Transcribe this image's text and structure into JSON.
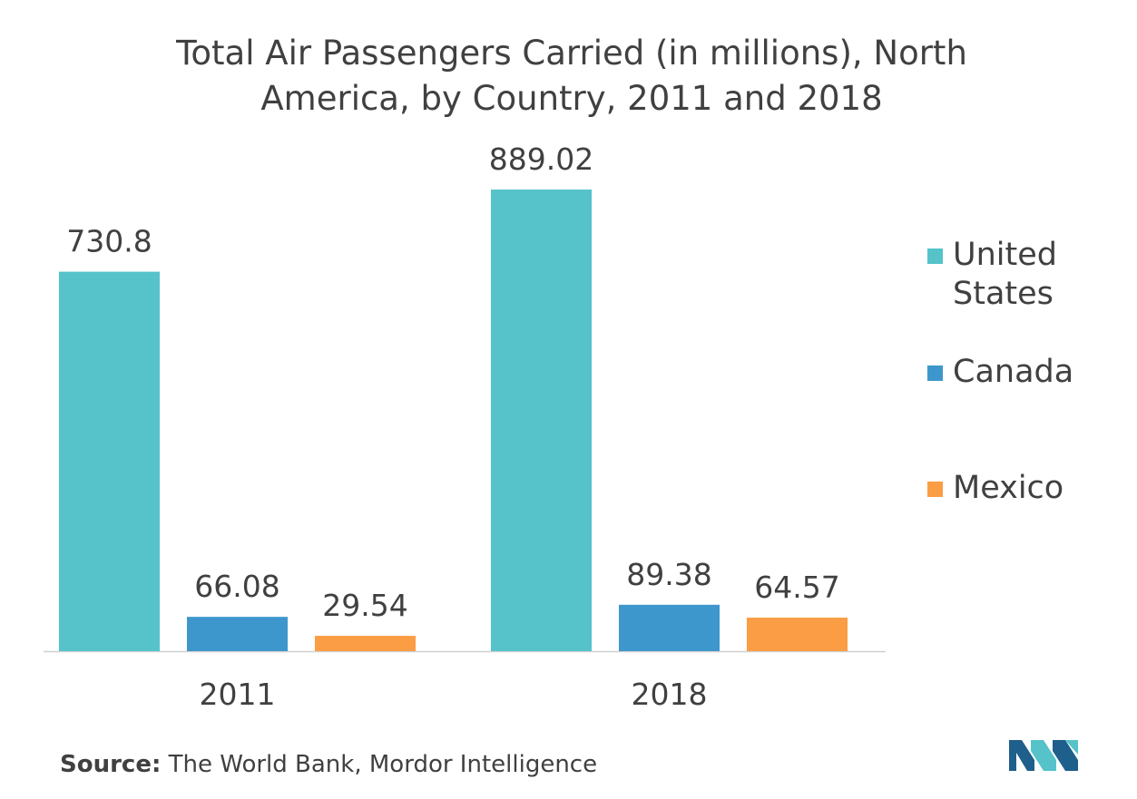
{
  "chart_data": {
    "type": "bar",
    "title": "Total Air Passengers Carried (in millions), North America, by Country, 2011 and 2018",
    "categories": [
      "2011",
      "2018"
    ],
    "series": [
      {
        "name": "United States",
        "values": [
          730.8,
          889.02
        ],
        "color": "#55c3c9",
        "labels": [
          "730.8",
          "889.02"
        ]
      },
      {
        "name": "Canada",
        "values": [
          66.08,
          89.38
        ],
        "color": "#3e97cc",
        "labels": [
          "66.08",
          "89.38"
        ]
      },
      {
        "name": "Mexico",
        "values": [
          29.54,
          64.57
        ],
        "color": "#fb9d44",
        "labels": [
          "29.54",
          "64.57"
        ]
      }
    ],
    "ylim": [
      0,
      889.02
    ],
    "grid": false,
    "legend": "right"
  },
  "source": {
    "label": "Source:",
    "text": "The World Bank, Mordor Intelligence"
  },
  "logo": {
    "icon": "mordor-intelligence-logo-icon",
    "colors": [
      "#1f5f8b",
      "#55c3c9"
    ]
  }
}
